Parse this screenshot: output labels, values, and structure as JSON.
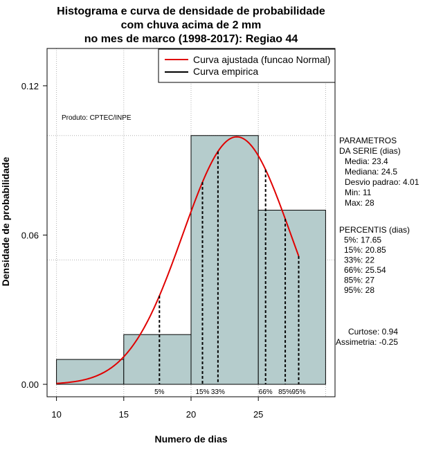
{
  "chart_data": {
    "type": "bar",
    "title_lines": [
      "Histograma e curva de densidade de probabilidade",
      "com chuva acima de 2 mm",
      "no mes de marco (1998-2017): Regiao 44"
    ],
    "xlabel": "Numero de dias",
    "ylabel": "Densidade de probabilidade",
    "xlim": [
      9.3,
      30.7
    ],
    "ylim": [
      -0.005,
      0.135
    ],
    "x_ticks": [
      10,
      15,
      20,
      25
    ],
    "x_tick_labels": [
      "10",
      "15",
      "20",
      "25"
    ],
    "y_ticks": [
      0.0,
      0.06,
      0.12
    ],
    "y_tick_labels": [
      "0.00",
      "0.06",
      "0.12"
    ],
    "grid_x": [
      10,
      15,
      20,
      25,
      30
    ],
    "grid_y": [
      0.05,
      0.1
    ],
    "bars": [
      {
        "x0": 10,
        "x1": 15,
        "density": 0.01
      },
      {
        "x0": 15,
        "x1": 20,
        "density": 0.02
      },
      {
        "x0": 20,
        "x1": 25,
        "density": 0.1
      },
      {
        "x0": 25,
        "x1": 30,
        "density": 0.07
      }
    ],
    "bar_color": "#b5cccc",
    "curve": {
      "name": "Curva ajustada (funcao Normal)",
      "color": "#e00000",
      "mean": 23.4,
      "sd": 4.01,
      "x_start": 10,
      "x_end": 28
    },
    "legend": {
      "position": "top-right",
      "entries": [
        {
          "label": "Curva ajustada (funcao Normal)",
          "color": "#e00000"
        },
        {
          "label": "Curva empirica",
          "color": "#000000"
        }
      ]
    },
    "percentiles": [
      {
        "label": "5%",
        "x": 17.65
      },
      {
        "label": "15%",
        "x": 20.85
      },
      {
        "label": "33%",
        "x": 22
      },
      {
        "label": "66%",
        "x": 25.54
      },
      {
        "label": "85%",
        "x": 27
      },
      {
        "label": "95%",
        "x": 28
      }
    ],
    "product_label": "Produto: CPTEC/INPE",
    "side_panel": {
      "parametros_lines": [
        "PARAMETROS",
        "DA SERIE (dias)",
        "Media: 23.4",
        "Mediana: 24.5",
        "Desvio padrao: 4.01",
        "Min: 11",
        "Max: 28"
      ],
      "percentis_lines": [
        "PERCENTIS (dias)",
        "5%: 17.65",
        "15%: 20.85",
        "33%: 22",
        "66%: 25.54",
        "85%: 27",
        "95%: 28"
      ],
      "shape_lines": [
        "Curtose: 0.94",
        "Assimetria: -0.25"
      ]
    }
  }
}
